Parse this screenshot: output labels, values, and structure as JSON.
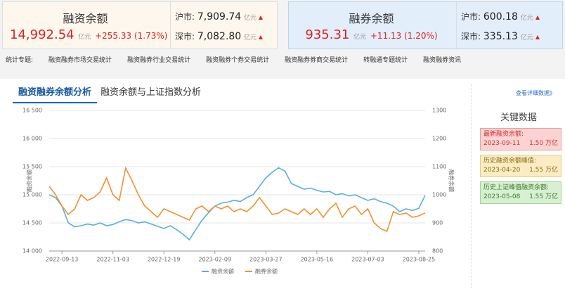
{
  "summary": [
    {
      "title": "融资余额",
      "value": "14,992.54",
      "unit": "亿元",
      "change": "+255.33 (1.73%)",
      "markets": [
        {
          "label": "沪市:",
          "value": "7,909.74",
          "unit": "亿元"
        },
        {
          "label": "深市:",
          "value": "7,082.80",
          "unit": "亿元"
        }
      ]
    },
    {
      "title": "融券余额",
      "value": "935.31",
      "unit": "亿元",
      "change": "+11.13 (1.20%)",
      "markets": [
        {
          "label": "沪市:",
          "value": "600.18",
          "unit": "亿元"
        },
        {
          "label": "深市:",
          "value": "335.13",
          "unit": "亿元"
        }
      ]
    }
  ],
  "nav": {
    "label": "统计专题:",
    "links": [
      "融资融券市场交易统计",
      "融资融券行业交易统计",
      "融资融券个券交易统计",
      "融资融券券商交易统计",
      "转融通专题统计",
      "融资融券资讯"
    ]
  },
  "tabs": [
    "融资融券余额分析",
    "融资余额与上证指数分析"
  ],
  "detail_link": "查看详细数据》",
  "key_data": {
    "title": "关键数据",
    "items": [
      {
        "label": "最新融资余额:",
        "date": "2023-09-11",
        "value": "1.50 万亿"
      },
      {
        "label": "历史融资余额峰值:",
        "date": "2023-04-20",
        "value": "1.55 万亿"
      },
      {
        "label": "历史上证峰值融资余额:",
        "date": "2023-05-08",
        "value": "1.55 万亿"
      }
    ]
  },
  "chart_data": {
    "type": "line",
    "ylabel": "融资余额",
    "y2label": "融券余额",
    "grid": true,
    "categories": [
      null,
      null,
      "2022-09-13",
      null,
      null,
      null,
      null,
      null,
      null,
      null,
      "2022-11-03",
      null,
      null,
      null,
      null,
      null,
      null,
      null,
      "2022-12-19",
      null,
      null,
      null,
      null,
      null,
      null,
      null,
      "2023-02-09",
      null,
      null,
      null,
      null,
      null,
      null,
      null,
      "2023-03-27",
      null,
      null,
      null,
      null,
      null,
      null,
      null,
      "2023-05-16",
      null,
      null,
      null,
      null,
      null,
      null,
      null,
      "2023-07-03",
      null,
      null,
      null,
      null,
      null,
      null,
      null,
      "2023-08-25",
      null
    ],
    "series": [
      {
        "name": "融资余额",
        "color": "#5aaee0",
        "values": [
          15000,
          14950,
          14800,
          14500,
          14430,
          14450,
          14480,
          14460,
          14500,
          14450,
          14470,
          14520,
          14560,
          14540,
          14500,
          14520,
          14480,
          14440,
          14400,
          14450,
          14380,
          14300,
          14200,
          14380,
          14550,
          14680,
          14800,
          14850,
          14870,
          14900,
          14880,
          14950,
          15000,
          15150,
          15300,
          15400,
          15480,
          15420,
          15200,
          15150,
          15100,
          15120,
          15080,
          15050,
          15060,
          15000,
          15020,
          14980,
          15000,
          14950,
          14900,
          14930,
          14880,
          14850,
          14800,
          14700,
          14750,
          14720,
          14760,
          14990
        ]
      },
      {
        "name": "融券余额",
        "color": "#f0922e",
        "axis": "y2",
        "values": [
          1030,
          1000,
          960,
          930,
          950,
          1000,
          980,
          990,
          1010,
          1060,
          1000,
          980,
          1095,
          1050,
          1000,
          960,
          940,
          920,
          950,
          940,
          930,
          920,
          910,
          950,
          960,
          940,
          960,
          950,
          960,
          940,
          950,
          940,
          960,
          990,
          960,
          930,
          935,
          950,
          940,
          930,
          950,
          930,
          950,
          920,
          950,
          970,
          920,
          950,
          960,
          930,
          950,
          900,
          880,
          870,
          940,
          930,
          935,
          920,
          925,
          935
        ]
      }
    ],
    "ylim": [
      14000,
      16500
    ],
    "yticks": [
      {
        "value": 14000,
        "label": "14 000"
      },
      {
        "value": 14500,
        "label": "14 500"
      },
      {
        "value": 15000,
        "label": "15 000"
      },
      {
        "value": 15500,
        "label": "15 500"
      },
      {
        "value": 16000,
        "label": "16 000"
      },
      {
        "value": 16500,
        "label": "16 500"
      }
    ],
    "y2lim": [
      800,
      1300
    ],
    "y2ticks": [
      800,
      900,
      1000,
      1100,
      1200,
      1300
    ]
  }
}
